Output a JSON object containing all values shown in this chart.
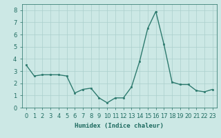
{
  "x": [
    0,
    1,
    2,
    3,
    4,
    5,
    6,
    7,
    8,
    9,
    10,
    11,
    12,
    13,
    14,
    15,
    16,
    17,
    18,
    19,
    20,
    21,
    22,
    23
  ],
  "y": [
    3.5,
    2.6,
    2.7,
    2.7,
    2.7,
    2.6,
    1.2,
    1.5,
    1.6,
    0.8,
    0.4,
    0.8,
    0.8,
    1.7,
    3.8,
    6.5,
    7.9,
    5.2,
    2.1,
    1.9,
    1.9,
    1.4,
    1.3,
    1.5
  ],
  "line_color": "#2d7a6e",
  "marker": "s",
  "marker_size": 2,
  "line_width": 1.0,
  "xlabel": "Humidex (Indice chaleur)",
  "xlim": [
    -0.5,
    23.5
  ],
  "ylim": [
    0,
    8.5
  ],
  "yticks": [
    0,
    1,
    2,
    3,
    4,
    5,
    6,
    7,
    8
  ],
  "xticks": [
    0,
    1,
    2,
    3,
    4,
    5,
    6,
    7,
    8,
    9,
    10,
    11,
    12,
    13,
    14,
    15,
    16,
    17,
    18,
    19,
    20,
    21,
    22,
    23
  ],
  "bg_color": "#cce8e5",
  "grid_color": "#aacfcc",
  "font_color": "#1e6b60",
  "xlabel_fontsize": 6.5,
  "tick_fontsize": 6.0
}
